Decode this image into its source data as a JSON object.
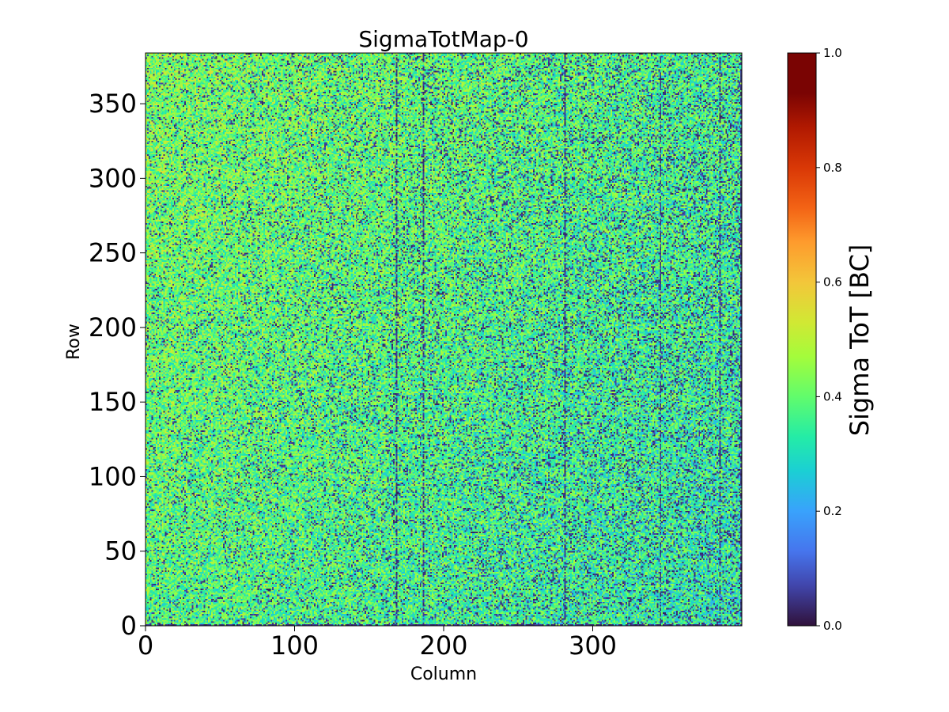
{
  "chart_data": {
    "type": "heatmap",
    "title": "SigmaTotMap-0",
    "xlabel": "Column",
    "ylabel": "Row",
    "colorbar_label": "Sigma ToT [BC]",
    "colormap": "turbo",
    "x_range": [
      0,
      400
    ],
    "y_range": [
      0,
      384
    ],
    "n_columns": 400,
    "n_rows": 384,
    "value_range": [
      0.0,
      1.0
    ],
    "xticks": [
      0,
      100,
      200,
      300
    ],
    "yticks": [
      0,
      50,
      100,
      150,
      200,
      250,
      300,
      350
    ],
    "colorbar_ticks": [
      "0.0",
      "0.2",
      "0.4",
      "0.6",
      "0.8",
      "1.0"
    ],
    "typical_value_range": [
      0.2,
      0.5
    ],
    "bright_region": "upper-left quadrant, values around 0.4-0.5",
    "dark_columns": [
      168,
      186,
      281,
      345,
      385,
      399
    ]
  }
}
